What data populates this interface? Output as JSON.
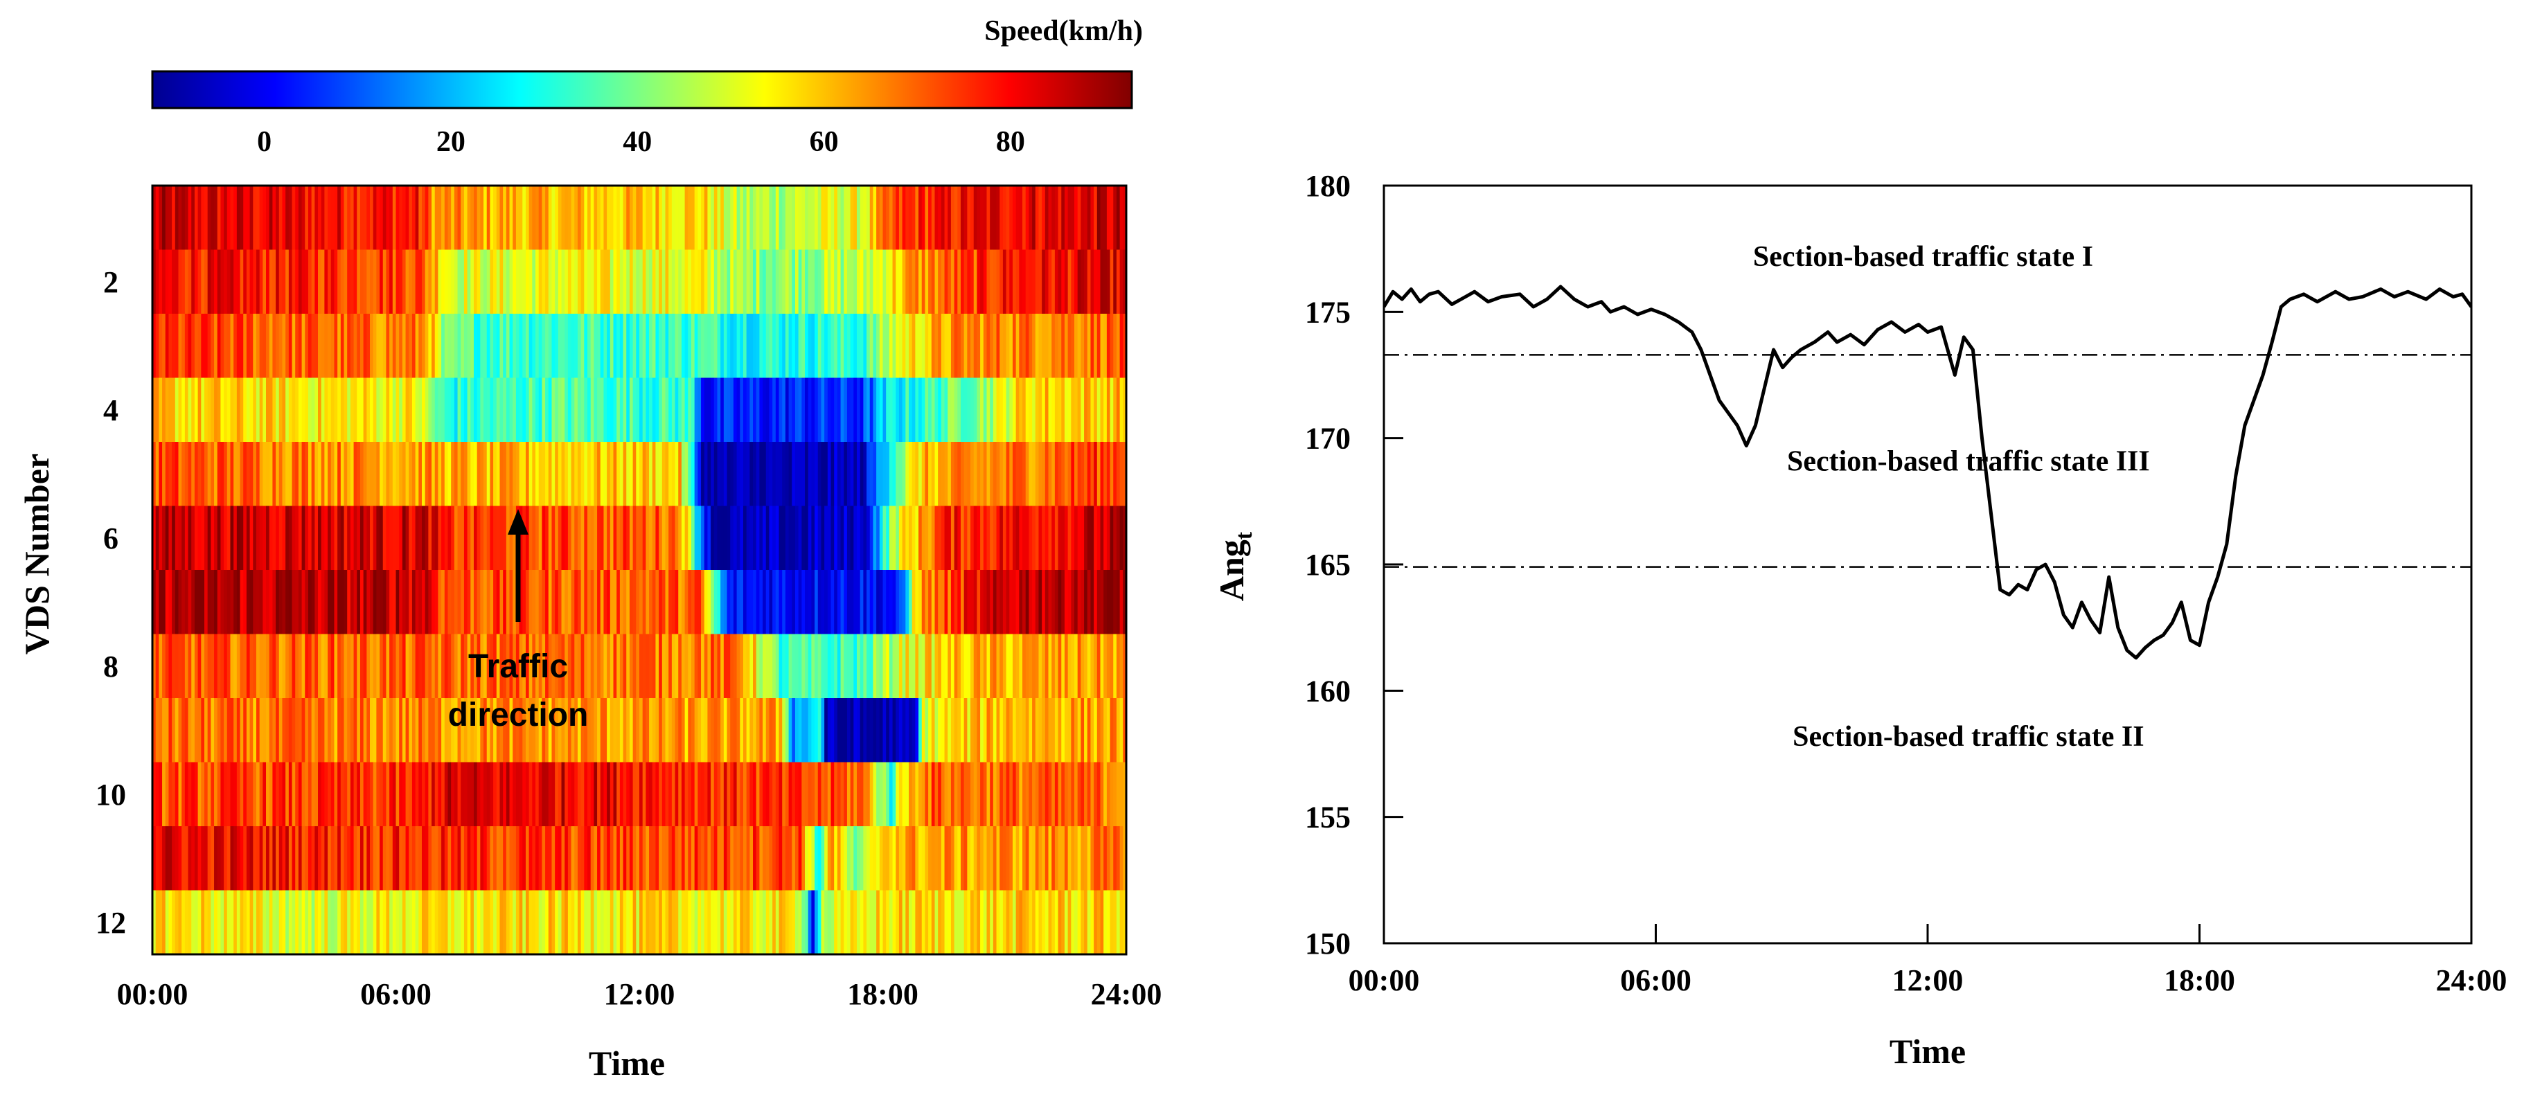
{
  "chart_data": [
    {
      "type": "heatmap",
      "colorbar": {
        "title": "Speed(km/h)",
        "range": [
          -12,
          93
        ],
        "ticks": [
          0,
          20,
          40,
          60,
          80
        ],
        "tick_labels": [
          "0",
          "20",
          "40",
          "60",
          "80"
        ],
        "colormap": "jet",
        "colors": [
          "#00008f",
          "#0000ff",
          "#0080ff",
          "#00ffff",
          "#80ff80",
          "#ffff00",
          "#ff8000",
          "#ff0000",
          "#800000"
        ]
      },
      "xlabel": "Time",
      "ylabel": "VDS Number",
      "x_tick_labels": [
        "00:00",
        "06:00",
        "12:00",
        "18:00",
        "24:00"
      ],
      "y_tick_labels": [
        "2",
        "4",
        "6",
        "8",
        "10",
        "12"
      ],
      "y_tick_values": [
        2,
        4,
        6,
        8,
        10,
        12
      ],
      "rows": 12,
      "x_range_hours": [
        0,
        24
      ],
      "speed_profiles": [
        [
          [
            0,
            84
          ],
          [
            6.5,
            78
          ],
          [
            7,
            64
          ],
          [
            10,
            60
          ],
          [
            13.5,
            58
          ],
          [
            14.5,
            44
          ],
          [
            17.5,
            52
          ],
          [
            18.5,
            74
          ],
          [
            21,
            82
          ],
          [
            24,
            84
          ]
        ],
        [
          [
            0,
            80
          ],
          [
            6.5,
            74
          ],
          [
            7.5,
            50
          ],
          [
            10,
            52
          ],
          [
            13.5,
            52
          ],
          [
            14.5,
            42
          ],
          [
            17.5,
            46
          ],
          [
            18.8,
            64
          ],
          [
            21,
            78
          ],
          [
            24,
            82
          ]
        ],
        [
          [
            0,
            74
          ],
          [
            6.8,
            66
          ],
          [
            7.2,
            36
          ],
          [
            10,
            34
          ],
          [
            13.5,
            34
          ],
          [
            14.5,
            30
          ],
          [
            17.5,
            32
          ],
          [
            18.5,
            54
          ],
          [
            20,
            66
          ],
          [
            24,
            70
          ]
        ],
        [
          [
            0,
            58
          ],
          [
            6.5,
            54
          ],
          [
            7.2,
            30
          ],
          [
            10,
            36
          ],
          [
            13.3,
            32
          ],
          [
            13.6,
            2
          ],
          [
            17.5,
            6
          ],
          [
            18.2,
            26
          ],
          [
            20.5,
            44
          ],
          [
            21.5,
            58
          ],
          [
            24,
            60
          ]
        ],
        [
          [
            0,
            72
          ],
          [
            6.5,
            64
          ],
          [
            8,
            60
          ],
          [
            13,
            58
          ],
          [
            13.6,
            -10
          ],
          [
            17.5,
            -8
          ],
          [
            18.2,
            34
          ],
          [
            19,
            60
          ],
          [
            24,
            76
          ]
        ],
        [
          [
            0,
            86
          ],
          [
            6.8,
            84
          ],
          [
            7.2,
            74
          ],
          [
            13,
            70
          ],
          [
            13.8,
            -10
          ],
          [
            17.5,
            -6
          ],
          [
            18.3,
            48
          ],
          [
            19.5,
            76
          ],
          [
            24,
            86
          ]
        ],
        [
          [
            0,
            88
          ],
          [
            6.8,
            86
          ],
          [
            7.2,
            72
          ],
          [
            13.5,
            70
          ],
          [
            14.2,
            2
          ],
          [
            18.5,
            2
          ],
          [
            18.8,
            62
          ],
          [
            20,
            76
          ],
          [
            21.5,
            88
          ],
          [
            24,
            90
          ]
        ],
        [
          [
            0,
            70
          ],
          [
            14.5,
            68
          ],
          [
            15.5,
            32
          ],
          [
            17.5,
            34
          ],
          [
            18.5,
            52
          ],
          [
            20,
            60
          ],
          [
            24,
            64
          ]
        ],
        [
          [
            0,
            68
          ],
          [
            15.5,
            62
          ],
          [
            15.8,
            16
          ],
          [
            16.5,
            30
          ],
          [
            16.6,
            -10
          ],
          [
            18.8,
            -10
          ],
          [
            19,
            52
          ],
          [
            21,
            62
          ],
          [
            24,
            64
          ]
        ],
        [
          [
            0,
            72
          ],
          [
            6.5,
            74
          ],
          [
            7,
            82
          ],
          [
            11,
            82
          ],
          [
            16,
            72
          ],
          [
            17.5,
            70
          ],
          [
            18.2,
            32
          ],
          [
            18.5,
            56
          ],
          [
            19,
            70
          ],
          [
            24,
            68
          ]
        ],
        [
          [
            0,
            82
          ],
          [
            6,
            76
          ],
          [
            12,
            72
          ],
          [
            16,
            74
          ],
          [
            16.4,
            26
          ],
          [
            16.7,
            66
          ],
          [
            17.4,
            34
          ],
          [
            18,
            62
          ],
          [
            24,
            66
          ]
        ],
        [
          [
            0,
            58
          ],
          [
            3.8,
            50
          ],
          [
            6,
            54
          ],
          [
            10,
            56
          ],
          [
            16,
            54
          ],
          [
            16.3,
            2
          ],
          [
            16.5,
            46
          ],
          [
            18,
            56
          ],
          [
            24,
            58
          ]
        ]
      ],
      "annotation": {
        "text_lines": [
          "Traffic",
          "direction"
        ],
        "arrow": "up"
      }
    },
    {
      "type": "line",
      "xlabel": "Time",
      "ylabel": "Ang",
      "ylabel_subscript": "t",
      "ylim": [
        150,
        180
      ],
      "xlim": [
        0,
        24
      ],
      "y_ticks": [
        150,
        155,
        160,
        165,
        170,
        175,
        180
      ],
      "y_tick_labels": [
        "150",
        "155",
        "160",
        "165",
        "170",
        "175",
        "180"
      ],
      "x_ticks": [
        0,
        6,
        12,
        18,
        24
      ],
      "x_tick_labels": [
        "00:00",
        "06:00",
        "12:00",
        "18:00",
        "24:00"
      ],
      "thresholds": [
        173.3,
        164.9
      ],
      "annotations": [
        {
          "text": "Section-based traffic state I",
          "x": 11.9,
          "y": 177.2
        },
        {
          "text": "Section-based traffic state III",
          "x": 12.9,
          "y": 169.1
        },
        {
          "text": "Section-based traffic state II",
          "x": 12.9,
          "y": 158.2
        }
      ],
      "series": [
        {
          "name": "Ang_t",
          "x": [
            0,
            0.2,
            0.4,
            0.6,
            0.8,
            1.0,
            1.2,
            1.5,
            1.8,
            2.0,
            2.3,
            2.6,
            3.0,
            3.3,
            3.6,
            3.9,
            4.2,
            4.5,
            4.8,
            5.0,
            5.3,
            5.6,
            5.9,
            6.2,
            6.5,
            6.8,
            7.0,
            7.2,
            7.4,
            7.6,
            7.8,
            8.0,
            8.2,
            8.4,
            8.6,
            8.8,
            9.0,
            9.2,
            9.5,
            9.8,
            10.0,
            10.3,
            10.6,
            10.9,
            11.2,
            11.5,
            11.8,
            12.0,
            12.3,
            12.6,
            12.8,
            13.0,
            13.2,
            13.4,
            13.6,
            13.8,
            14.0,
            14.2,
            14.4,
            14.6,
            14.8,
            15.0,
            15.2,
            15.4,
            15.6,
            15.8,
            16.0,
            16.2,
            16.4,
            16.6,
            16.8,
            17.0,
            17.2,
            17.4,
            17.6,
            17.8,
            18.0,
            18.2,
            18.4,
            18.6,
            18.8,
            19.0,
            19.2,
            19.4,
            19.6,
            19.8,
            20.0,
            20.3,
            20.6,
            21.0,
            21.3,
            21.6,
            22.0,
            22.3,
            22.6,
            23.0,
            23.3,
            23.6,
            23.8,
            24.0
          ],
          "values": [
            175.2,
            175.8,
            175.5,
            175.9,
            175.4,
            175.7,
            175.8,
            175.3,
            175.6,
            175.8,
            175.4,
            175.6,
            175.7,
            175.2,
            175.5,
            176.0,
            175.5,
            175.2,
            175.4,
            175.0,
            175.2,
            174.9,
            175.1,
            174.9,
            174.6,
            174.2,
            173.5,
            172.5,
            171.5,
            171.0,
            170.5,
            169.7,
            170.5,
            172.0,
            173.5,
            172.8,
            173.2,
            173.5,
            173.8,
            174.2,
            173.8,
            174.1,
            173.7,
            174.3,
            174.6,
            174.2,
            174.5,
            174.2,
            174.4,
            172.5,
            174.0,
            173.5,
            170.0,
            167.0,
            164.0,
            163.8,
            164.2,
            164.0,
            164.8,
            165.0,
            164.3,
            163.0,
            162.5,
            163.5,
            162.8,
            162.3,
            164.5,
            162.5,
            161.6,
            161.3,
            161.7,
            162.0,
            162.2,
            162.7,
            163.5,
            162.0,
            161.8,
            163.5,
            164.5,
            165.8,
            168.5,
            170.5,
            171.5,
            172.5,
            173.8,
            175.2,
            175.5,
            175.7,
            175.4,
            175.8,
            175.5,
            175.6,
            175.9,
            175.6,
            175.8,
            175.5,
            175.9,
            175.6,
            175.7,
            175.2
          ]
        }
      ]
    }
  ]
}
